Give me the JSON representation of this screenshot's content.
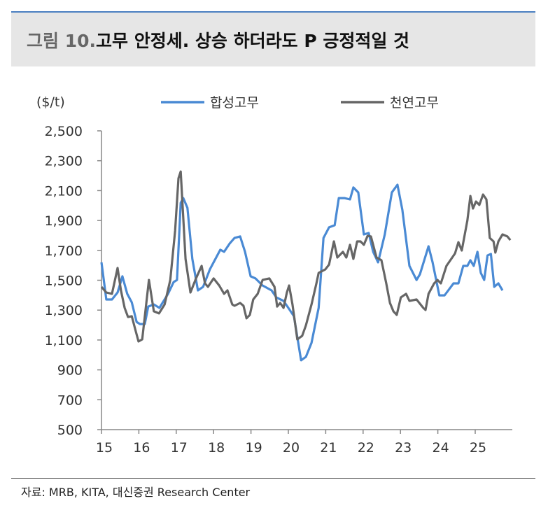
{
  "header": {
    "prefix": "그림 10.",
    "title": "고무 안정세. 상승 하더라도 P 긍정적일 것"
  },
  "source": "자료: MRB, KITA, 대신증권 Research Center",
  "chart_data": {
    "type": "line",
    "title": "고무 안정세. 상승 하더라도 P 긍정적일 것",
    "ylabel": "($/t)",
    "xlabel": "",
    "ylim": [
      500,
      2500
    ],
    "yticks": [
      "2,500",
      "2,300",
      "2,100",
      "1,900",
      "1,700",
      "1,500",
      "1,300",
      "1,100",
      "900",
      "700",
      "500"
    ],
    "ytick_values": [
      2500,
      2300,
      2100,
      1900,
      1700,
      1500,
      1300,
      1100,
      900,
      700,
      500
    ],
    "xticks": [
      "15",
      "16",
      "17",
      "18",
      "19",
      "20",
      "21",
      "22",
      "23",
      "24",
      "25"
    ],
    "xtick_values": [
      15,
      16,
      17,
      18,
      19,
      20,
      21,
      22,
      23,
      24,
      25
    ],
    "xlim": [
      15,
      25.95
    ],
    "legend_position": "top",
    "colors": {
      "synthetic": "#4a8ad4",
      "natural": "#666666"
    },
    "series": [
      {
        "name": "합성고무",
        "color": "#4a8ad4",
        "x": [
          15.0,
          15.13,
          15.28,
          15.43,
          15.56,
          15.69,
          15.81,
          15.94,
          16.03,
          16.16,
          16.25,
          16.4,
          16.55,
          16.78,
          16.93,
          17.02,
          17.12,
          17.19,
          17.3,
          17.43,
          17.58,
          17.72,
          17.9,
          18.18,
          18.28,
          18.43,
          18.56,
          18.71,
          18.84,
          18.99,
          19.12,
          19.31,
          19.55,
          19.68,
          19.87,
          20.0,
          20.15,
          20.34,
          20.47,
          20.62,
          20.81,
          20.94,
          21.09,
          21.24,
          21.35,
          21.5,
          21.65,
          21.74,
          21.87,
          22.02,
          22.15,
          22.27,
          22.4,
          22.58,
          22.77,
          22.92,
          23.05,
          23.24,
          23.43,
          23.52,
          23.75,
          23.86,
          24.04,
          24.18,
          24.42,
          24.55,
          24.68,
          24.79,
          24.87,
          24.96,
          25.06,
          25.15,
          25.24,
          25.33,
          25.42,
          25.51,
          25.62,
          25.73
        ],
        "values": [
          1620,
          1371,
          1371,
          1418,
          1526,
          1409,
          1352,
          1221,
          1207,
          1207,
          1324,
          1338,
          1315,
          1409,
          1488,
          1502,
          2018,
          2050,
          1985,
          1643,
          1432,
          1456,
          1573,
          1704,
          1690,
          1746,
          1783,
          1793,
          1690,
          1526,
          1512,
          1465,
          1432,
          1385,
          1362,
          1315,
          1259,
          964,
          987,
          1081,
          1315,
          1783,
          1854,
          1868,
          2050,
          2050,
          2041,
          2121,
          2088,
          1807,
          1816,
          1690,
          1620,
          1807,
          2088,
          2139,
          1971,
          1596,
          1502,
          1540,
          1727,
          1620,
          1399,
          1399,
          1479,
          1479,
          1596,
          1596,
          1634,
          1596,
          1690,
          1549,
          1502,
          1666,
          1676,
          1456,
          1479,
          1432
        ]
      },
      {
        "name": "천연고무",
        "color": "#666666",
        "x": [
          15.0,
          15.13,
          15.28,
          15.43,
          15.52,
          15.62,
          15.71,
          15.81,
          15.9,
          15.99,
          16.09,
          16.27,
          16.4,
          16.54,
          16.69,
          16.84,
          16.97,
          17.06,
          17.12,
          17.25,
          17.38,
          17.53,
          17.68,
          17.77,
          17.85,
          18.0,
          18.15,
          18.28,
          18.37,
          18.5,
          18.56,
          18.71,
          18.8,
          18.88,
          18.97,
          19.06,
          19.18,
          19.31,
          19.49,
          19.63,
          19.7,
          19.78,
          19.87,
          19.96,
          20.02,
          20.11,
          20.24,
          20.37,
          20.47,
          20.62,
          20.75,
          20.81,
          20.99,
          21.09,
          21.22,
          21.31,
          21.46,
          21.55,
          21.65,
          21.74,
          21.84,
          21.93,
          22.02,
          22.12,
          22.21,
          22.36,
          22.49,
          22.62,
          22.72,
          22.81,
          22.9,
          23.01,
          23.15,
          23.24,
          23.43,
          23.61,
          23.67,
          23.75,
          23.9,
          23.99,
          24.08,
          24.23,
          24.36,
          24.46,
          24.55,
          24.64,
          24.79,
          24.87,
          24.94,
          25.02,
          25.11,
          25.21,
          25.3,
          25.39,
          25.49,
          25.54,
          25.62,
          25.73,
          25.86,
          25.94
        ],
        "values": [
          1455,
          1418,
          1409,
          1582,
          1432,
          1315,
          1254,
          1259,
          1174,
          1090,
          1104,
          1502,
          1292,
          1278,
          1338,
          1502,
          1830,
          2182,
          2228,
          1643,
          1418,
          1512,
          1596,
          1479,
          1456,
          1512,
          1465,
          1409,
          1432,
          1338,
          1329,
          1348,
          1329,
          1245,
          1268,
          1371,
          1409,
          1502,
          1512,
          1456,
          1324,
          1348,
          1315,
          1418,
          1465,
          1338,
          1104,
          1128,
          1198,
          1338,
          1479,
          1549,
          1573,
          1605,
          1760,
          1652,
          1690,
          1652,
          1737,
          1643,
          1760,
          1760,
          1737,
          1797,
          1793,
          1652,
          1634,
          1479,
          1348,
          1292,
          1268,
          1385,
          1409,
          1362,
          1371,
          1315,
          1301,
          1409,
          1479,
          1502,
          1479,
          1596,
          1643,
          1680,
          1755,
          1699,
          1900,
          2064,
          1980,
          2027,
          2004,
          2074,
          2041,
          1783,
          1760,
          1685,
          1760,
          1807,
          1793,
          1769
        ]
      }
    ]
  }
}
